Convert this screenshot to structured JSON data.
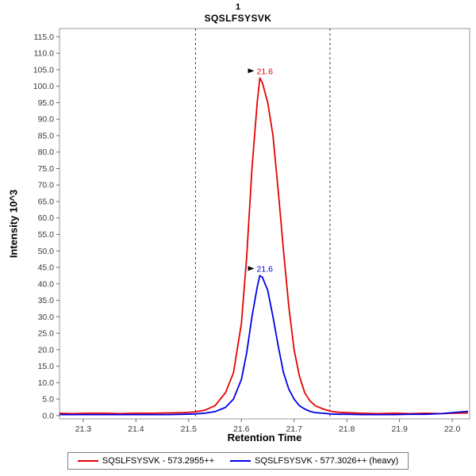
{
  "title": {
    "line1": "1",
    "line2": "SQSLFSYSVK"
  },
  "axis": {
    "x_label": "Retention Time",
    "y_label": "Intensity 10^3"
  },
  "legend": {
    "items": [
      {
        "label": "SQSLFSYSVK - 573.2955++",
        "color": "#e60000"
      },
      {
        "label": "SQSLFSYSVK - 577.3026++ (heavy)",
        "color": "#0000e6"
      }
    ]
  },
  "chart_data": {
    "type": "line",
    "title": "1 / SQSLFSYSVK",
    "xlabel": "Retention Time",
    "ylabel": "Intensity 10^3",
    "xlim": [
      21.255,
      22.033
    ],
    "ylim": [
      -1,
      117.5
    ],
    "x_ticks": [
      21.3,
      21.4,
      21.5,
      21.6,
      21.7,
      21.8,
      21.9,
      22.0
    ],
    "y_ticks": [
      0,
      5,
      10,
      15,
      20,
      25,
      30,
      35,
      40,
      45,
      50,
      55,
      60,
      65,
      70,
      75,
      80,
      85,
      90,
      95,
      100,
      105,
      110,
      115
    ],
    "grid": false,
    "legend_position": "bottom",
    "boundaries": [
      21.513,
      21.768
    ],
    "series": [
      {
        "name": "SQSLFSYSVK - 573.2955++",
        "color": "#e60000",
        "peak_label": "21.6",
        "peak_x": 21.635,
        "peak_y": 102.5,
        "x": [
          21.255,
          21.28,
          21.31,
          21.34,
          21.37,
          21.4,
          21.43,
          21.46,
          21.49,
          21.51,
          21.53,
          21.55,
          21.57,
          21.585,
          21.6,
          21.61,
          21.62,
          21.63,
          21.635,
          21.64,
          21.65,
          21.66,
          21.67,
          21.68,
          21.69,
          21.7,
          21.71,
          21.72,
          21.73,
          21.74,
          21.755,
          21.77,
          21.785,
          21.8,
          21.83,
          21.86,
          21.89,
          21.92,
          21.95,
          21.98,
          22.0,
          22.03
        ],
        "y": [
          0.7,
          0.6,
          0.7,
          0.7,
          0.6,
          0.7,
          0.7,
          0.8,
          0.9,
          1.1,
          1.6,
          3.0,
          7.0,
          13,
          28,
          48,
          75,
          95,
          102.5,
          101,
          95,
          85,
          68,
          50,
          33,
          20,
          12,
          7,
          4.5,
          3,
          2.0,
          1.3,
          1.0,
          0.9,
          0.7,
          0.6,
          0.7,
          0.6,
          0.7,
          0.6,
          0.7,
          0.8
        ]
      },
      {
        "name": "SQSLFSYSVK - 577.3026++ (heavy)",
        "color": "#0000e6",
        "peak_label": "21.6",
        "peak_x": 21.635,
        "peak_y": 42.5,
        "x": [
          21.255,
          21.28,
          21.31,
          21.34,
          21.37,
          21.4,
          21.43,
          21.46,
          21.49,
          21.51,
          21.53,
          21.55,
          21.57,
          21.585,
          21.6,
          21.61,
          21.62,
          21.63,
          21.635,
          21.64,
          21.65,
          21.66,
          21.67,
          21.68,
          21.69,
          21.7,
          21.71,
          21.72,
          21.73,
          21.74,
          21.755,
          21.77,
          21.785,
          21.8,
          21.83,
          21.86,
          21.89,
          21.92,
          21.95,
          21.98,
          22.0,
          22.03
        ],
        "y": [
          0.3,
          0.3,
          0.3,
          0.3,
          0.3,
          0.3,
          0.3,
          0.3,
          0.4,
          0.5,
          0.7,
          1.2,
          2.5,
          5,
          11,
          19,
          30,
          39,
          42.5,
          42,
          38,
          30,
          21,
          13,
          8,
          5,
          3,
          2,
          1.3,
          0.9,
          0.7,
          0.5,
          0.4,
          0.4,
          0.3,
          0.3,
          0.3,
          0.4,
          0.4,
          0.6,
          0.9,
          1.3
        ]
      }
    ]
  }
}
